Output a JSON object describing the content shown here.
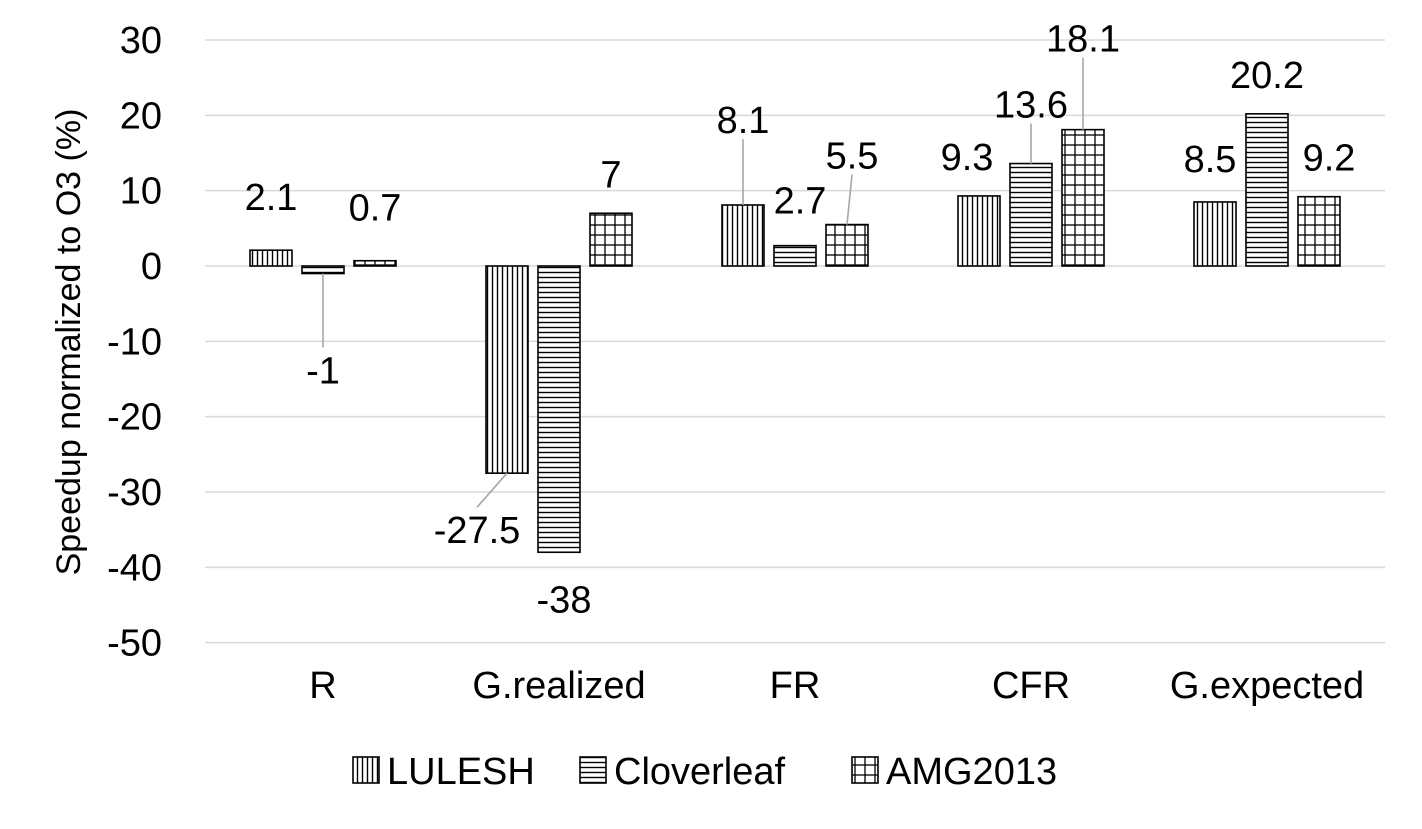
{
  "chart_data": {
    "type": "bar",
    "title": "",
    "xlabel": "",
    "ylabel": "Speedup normalized to O3 (%)",
    "ylim": [
      -50,
      30
    ],
    "yticks": [
      30,
      20,
      10,
      0,
      -10,
      -20,
      -30,
      -40,
      -50
    ],
    "grid": true,
    "legend_position": "bottom",
    "categories": [
      "R",
      "G.realized",
      "FR",
      "CFR",
      "G.expected"
    ],
    "series": [
      {
        "name": "LULESH",
        "pattern": "vertical-lines",
        "values": [
          2.1,
          -27.5,
          8.1,
          9.3,
          8.5
        ]
      },
      {
        "name": "Cloverleaf",
        "pattern": "horizontal-lines",
        "values": [
          -1,
          -38,
          2.7,
          13.6,
          20.2
        ]
      },
      {
        "name": "AMG2013",
        "pattern": "grid",
        "values": [
          0.7,
          7,
          5.5,
          18.1,
          9.2
        ]
      }
    ],
    "data_labels": [
      [
        "2.1",
        "-27.5",
        "8.1",
        "9.3",
        "8.5"
      ],
      [
        "-1",
        "-38",
        "2.7",
        "13.6",
        "20.2"
      ],
      [
        "0.7",
        "7",
        "5.5",
        "18.1",
        "9.2"
      ]
    ],
    "colors": {
      "bar_stroke": "#000000",
      "bar_fill": "#ffffff",
      "grid": "#d9d9d9",
      "leader": "#a6a6a6",
      "text": "#000000"
    }
  }
}
